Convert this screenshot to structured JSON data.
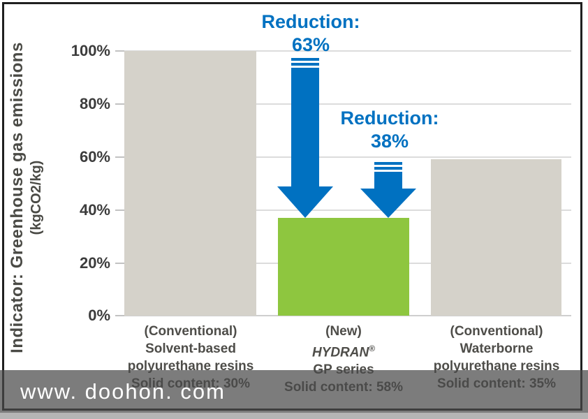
{
  "colors": {
    "arrow_blue": "#0071c1",
    "bar_gray": "#d5d2ca",
    "bar_green": "#8ec63f",
    "grid": "#dcdcdc",
    "label_dark": "#4a4a45"
  },
  "y_axis": {
    "title_line1": "Indicator: Greenhouse gas emissions",
    "title_line2": "(kgCO2/kg)",
    "ticks_top_down": [
      "100%",
      "80%",
      "60%",
      "40%",
      "20%",
      "0%"
    ]
  },
  "annotations": [
    {
      "label": "Reduction:",
      "value": "63%"
    },
    {
      "label": "Reduction:",
      "value": "38%"
    }
  ],
  "bars": [
    {
      "lines": [
        "(Conventional)",
        "Solvent-based",
        "polyurethane resins",
        "Solid content: 30%"
      ]
    },
    {
      "lines": [
        "(New)",
        "HYDRAN",
        "GP series",
        "Solid content: 58%"
      ],
      "reg_mark": "®"
    },
    {
      "lines": [
        "(Conventional)",
        "Waterborne",
        "polyurethane resins",
        "Solid content: 35%"
      ]
    }
  ],
  "watermark": {
    "text": "www. doohon. com"
  },
  "chart_data": {
    "type": "bar",
    "categories": [
      "(Conventional) Solvent-based polyurethane resins — Solid content: 30%",
      "(New) HYDRAN® GP series — Solid content: 58%",
      "(Conventional) Waterborne polyurethane resins — Solid content: 35%"
    ],
    "values": [
      100,
      37,
      59
    ],
    "bar_colors": [
      "#d5d2ca",
      "#8ec63f",
      "#d5d2ca"
    ],
    "title": "",
    "xlabel": "",
    "ylabel": "Indicator: Greenhouse gas emissions (kgCO2/kg)",
    "ylim": [
      0,
      100
    ],
    "yticks": [
      "0%",
      "20%",
      "40%",
      "60%",
      "80%",
      "100%"
    ],
    "grid": true,
    "legend": false,
    "annotations": [
      {
        "text": "Reduction: 63%",
        "from": "(Conventional) Solvent-based polyurethane resins",
        "to": "(New) HYDRAN® GP series"
      },
      {
        "text": "Reduction: 38%",
        "from": "(Conventional) Waterborne polyurethane resins",
        "to": "(New) HYDRAN® GP series"
      }
    ]
  }
}
